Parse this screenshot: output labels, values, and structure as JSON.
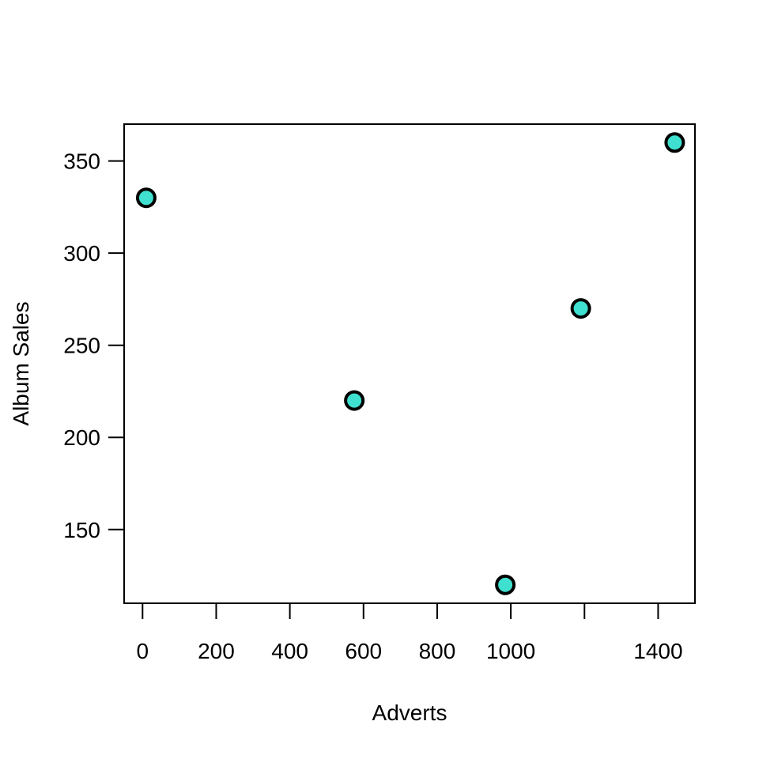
{
  "chart_data": {
    "type": "scatter",
    "title": "",
    "xlabel": "Adverts",
    "ylabel": "Album Sales",
    "xlim": [
      -50,
      1500
    ],
    "ylim": [
      110,
      370
    ],
    "x_ticks": [
      0,
      200,
      400,
      600,
      800,
      1000,
      1200,
      1400
    ],
    "x_tick_labels": [
      "0",
      "200",
      "400",
      "600",
      "800",
      "1000",
      "",
      "1400"
    ],
    "y_ticks": [
      150,
      200,
      250,
      300,
      350
    ],
    "y_tick_labels": [
      "150",
      "200",
      "250",
      "300",
      "350"
    ],
    "grid": false,
    "legend": "none",
    "point_color": "#40e0d0",
    "point_outline": "#000000",
    "series": [
      {
        "points": [
          {
            "x": 10,
            "y": 330
          },
          {
            "x": 575,
            "y": 220
          },
          {
            "x": 985,
            "y": 120
          },
          {
            "x": 1190,
            "y": 270
          },
          {
            "x": 1445,
            "y": 360
          }
        ]
      }
    ]
  }
}
